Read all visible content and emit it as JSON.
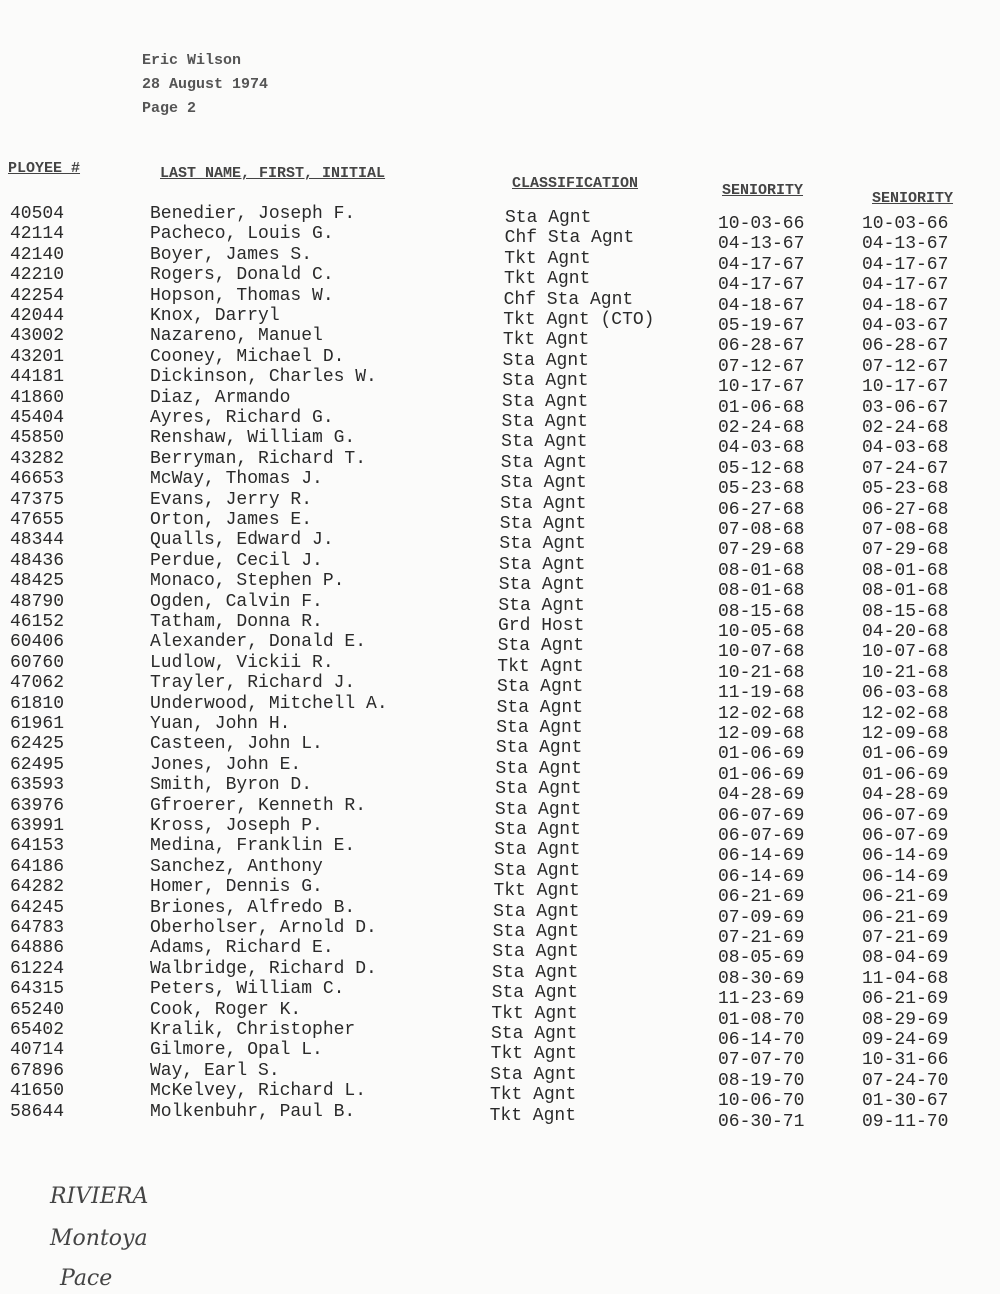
{
  "header": {
    "name": "Eric Wilson",
    "date": "28 August 1974",
    "page": "Page 2"
  },
  "columns": [
    "PLOYEE #",
    "LAST NAME, FIRST, INITIAL",
    "CLASSIFICATION",
    "SENIORITY",
    "SENIORITY"
  ],
  "table": {
    "rows": [
      [
        "40504",
        "Benedier, Joseph F.",
        "Sta Agnt",
        "10-03-66",
        "10-03-66"
      ],
      [
        "42114",
        "Pacheco, Louis G.",
        "Chf Sta Agnt",
        "04-13-67",
        "04-13-67"
      ],
      [
        "42140",
        "Boyer, James S.",
        "Tkt Agnt",
        "04-17-67",
        "04-17-67"
      ],
      [
        "42210",
        "Rogers, Donald C.",
        "Tkt Agnt",
        "04-17-67",
        "04-17-67"
      ],
      [
        "42254",
        "Hopson, Thomas W.",
        "Chf Sta Agnt",
        "04-18-67",
        "04-18-67"
      ],
      [
        "42044",
        "Knox, Darryl",
        "Tkt Agnt (CTO)",
        "05-19-67",
        "04-03-67"
      ],
      [
        "43002",
        "Nazareno, Manuel",
        "Tkt Agnt",
        "06-28-67",
        "06-28-67"
      ],
      [
        "43201",
        "Cooney, Michael D.",
        "Sta Agnt",
        "07-12-67",
        "07-12-67"
      ],
      [
        "44181",
        "Dickinson, Charles W.",
        "Sta Agnt",
        "10-17-67",
        "10-17-67"
      ],
      [
        "41860",
        "Diaz, Armando",
        "Sta Agnt",
        "01-06-68",
        "03-06-67"
      ],
      [
        "45404",
        "Ayres, Richard G.",
        "Sta Agnt",
        "02-24-68",
        "02-24-68"
      ],
      [
        "45850",
        "Renshaw, William G.",
        "Sta Agnt",
        "04-03-68",
        "04-03-68"
      ],
      [
        "43282",
        "Berryman, Richard T.",
        "Sta Agnt",
        "05-12-68",
        "07-24-67"
      ],
      [
        "46653",
        "McWay, Thomas J.",
        "Sta Agnt",
        "05-23-68",
        "05-23-68"
      ],
      [
        "47375",
        "Evans, Jerry R.",
        "Sta Agnt",
        "06-27-68",
        "06-27-68"
      ],
      [
        "47655",
        "Orton, James E.",
        "Sta Agnt",
        "07-08-68",
        "07-08-68"
      ],
      [
        "48344",
        "Qualls, Edward J.",
        "Sta Agnt",
        "07-29-68",
        "07-29-68"
      ],
      [
        "48436",
        "Perdue, Cecil J.",
        "Sta Agnt",
        "08-01-68",
        "08-01-68"
      ],
      [
        "48425",
        "Monaco, Stephen P.",
        "Sta Agnt",
        "08-01-68",
        "08-01-68"
      ],
      [
        "48790",
        "Ogden, Calvin F.",
        "Sta Agnt",
        "08-15-68",
        "08-15-68"
      ],
      [
        "46152",
        "Tatham, Donna R.",
        "Grd Host",
        "10-05-68",
        "04-20-68"
      ],
      [
        "60406",
        "Alexander, Donald E.",
        "Sta Agnt",
        "10-07-68",
        "10-07-68"
      ],
      [
        "60760",
        "Ludlow, Vickii R.",
        "Tkt Agnt",
        "10-21-68",
        "10-21-68"
      ],
      [
        "47062",
        "Trayler, Richard J.",
        "Sta Agnt",
        "11-19-68",
        "06-03-68"
      ],
      [
        "61810",
        "Underwood, Mitchell A.",
        "Sta Agnt",
        "12-02-68",
        "12-02-68"
      ],
      [
        "61961",
        "Yuan, John H.",
        "Sta Agnt",
        "12-09-68",
        "12-09-68"
      ],
      [
        "62425",
        "Casteen, John L.",
        "Sta Agnt",
        "01-06-69",
        "01-06-69"
      ],
      [
        "62495",
        "Jones, John E.",
        "Sta Agnt",
        "01-06-69",
        "01-06-69"
      ],
      [
        "63593",
        "Smith, Byron D.",
        "Sta Agnt",
        "04-28-69",
        "04-28-69"
      ],
      [
        "63976",
        "Gfroerer, Kenneth R.",
        "Sta Agnt",
        "06-07-69",
        "06-07-69"
      ],
      [
        "63991",
        "Kross, Joseph P.",
        "Sta Agnt",
        "06-07-69",
        "06-07-69"
      ],
      [
        "64153",
        "Medina, Franklin E.",
        "Sta Agnt",
        "06-14-69",
        "06-14-69"
      ],
      [
        "64186",
        "Sanchez, Anthony",
        "Sta Agnt",
        "06-14-69",
        "06-14-69"
      ],
      [
        "64282",
        "Homer, Dennis G.",
        "Tkt Agnt",
        "06-21-69",
        "06-21-69"
      ],
      [
        "64245",
        "Briones, Alfredo B.",
        "Sta Agnt",
        "07-09-69",
        "06-21-69"
      ],
      [
        "64783",
        "Oberholser, Arnold D.",
        "Sta Agnt",
        "07-21-69",
        "07-21-69"
      ],
      [
        "64886",
        "Adams, Richard E.",
        "Sta Agnt",
        "08-05-69",
        "08-04-69"
      ],
      [
        "61224",
        "Walbridge, Richard D.",
        "Sta Agnt",
        "08-30-69",
        "11-04-68"
      ],
      [
        "64315",
        "Peters, William C.",
        "Sta Agnt",
        "11-23-69",
        "06-21-69"
      ],
      [
        "65240",
        "Cook, Roger K.",
        "Tkt Agnt",
        "01-08-70",
        "08-29-69"
      ],
      [
        "65402",
        "Kralik, Christopher",
        "Sta Agnt",
        "06-14-70",
        "09-24-69"
      ],
      [
        "40714",
        "Gilmore, Opal L.",
        "Tkt Agnt",
        "07-07-70",
        "10-31-66"
      ],
      [
        "67896",
        "Way, Earl S.",
        "Sta Agnt",
        "08-19-70",
        "07-24-70"
      ],
      [
        "41650",
        "McKelvey, Richard L.",
        "Tkt Agnt",
        "10-06-70",
        "01-30-67"
      ],
      [
        "58644",
        "Molkenbuhr, Paul B.",
        "Tkt Agnt",
        "06-30-71",
        "09-11-70"
      ]
    ]
  },
  "notes": [
    "RIVIERA",
    "Montoya",
    "Pace"
  ]
}
